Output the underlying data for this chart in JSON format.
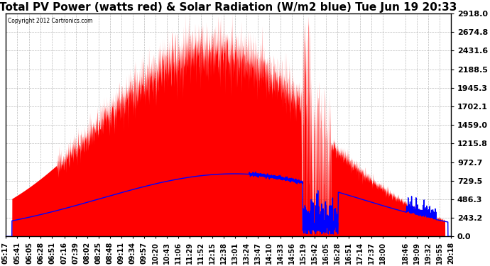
{
  "title": "Total PV Power (watts red) & Solar Radiation (W/m2 blue) Tue Jun 19 20:33",
  "copyright": "Copyright 2012 Cartronics.com",
  "bg_color": "#ffffff",
  "plot_bg_color": "#ffffff",
  "grid_color": "#aaaaaa",
  "red_color": "#ff0000",
  "blue_color": "#0000ff",
  "ymax": 2918.0,
  "ymin": 0.0,
  "yticks": [
    0.0,
    243.2,
    486.3,
    729.5,
    972.7,
    1215.8,
    1459.0,
    1702.1,
    1945.3,
    2188.5,
    2431.6,
    2674.8,
    2918.0
  ],
  "xlabels": [
    "05:17",
    "05:41",
    "06:05",
    "06:28",
    "06:51",
    "07:16",
    "07:39",
    "08:02",
    "08:25",
    "08:48",
    "09:11",
    "09:34",
    "09:57",
    "10:20",
    "10:43",
    "11:06",
    "11:29",
    "11:52",
    "12:15",
    "12:38",
    "13:01",
    "13:24",
    "13:47",
    "14:10",
    "14:33",
    "14:56",
    "15:19",
    "15:42",
    "16:05",
    "16:28",
    "16:51",
    "17:14",
    "17:37",
    "18:00",
    "18:46",
    "19:09",
    "19:32",
    "19:55",
    "20:18"
  ],
  "title_fontsize": 11,
  "label_fontsize": 7,
  "ylabel_fontsize": 8
}
